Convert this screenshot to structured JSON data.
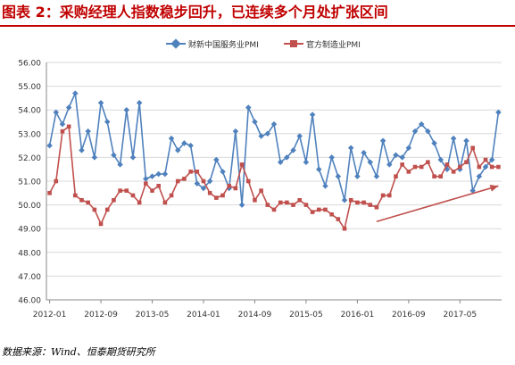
{
  "title": "图表 2：采购经理人指数稳步回升，已连续多个月处扩张区间",
  "source": "数据来源：Wind、恒泰期货研究所",
  "colors": {
    "title": "#c00000",
    "services": "#4f81bd",
    "manufacturing": "#c0504d",
    "arrow": "#c0504d"
  },
  "chart_data": {
    "type": "line",
    "legend_position": "top",
    "grid": "horizontal",
    "ylim": [
      46,
      56
    ],
    "yticks": [
      "46.00",
      "47.00",
      "48.00",
      "49.00",
      "50.00",
      "51.00",
      "52.00",
      "53.00",
      "54.00",
      "55.00",
      "56.00"
    ],
    "xtick_labels": [
      "2012-01",
      "2012-09",
      "2013-05",
      "2014-01",
      "2014-09",
      "2015-05",
      "2016-01",
      "2016-09",
      "2017-05"
    ],
    "xtick_index": [
      0,
      8,
      16,
      24,
      32,
      40,
      48,
      56,
      64
    ],
    "n_points": 71,
    "series": [
      {
        "name": "财新中国服务业PMI",
        "marker": "diamond",
        "values": [
          52.5,
          53.9,
          53.4,
          54.1,
          54.7,
          52.3,
          53.1,
          52.0,
          54.3,
          53.5,
          52.1,
          51.7,
          54.0,
          52.0,
          54.3,
          51.1,
          51.2,
          51.3,
          51.3,
          52.8,
          52.3,
          52.6,
          52.5,
          50.9,
          50.7,
          51.0,
          51.9,
          51.4,
          50.7,
          53.1,
          50.0,
          54.1,
          53.5,
          52.9,
          53.0,
          53.4,
          51.8,
          52.0,
          52.3,
          52.9,
          51.8,
          53.8,
          51.5,
          50.8,
          52.0,
          51.2,
          50.2,
          52.4,
          51.2,
          52.2,
          51.8,
          51.2,
          52.7,
          51.7,
          52.1,
          52.0,
          52.4,
          53.1,
          53.4,
          53.1,
          52.6,
          51.9,
          51.5,
          52.8,
          51.5,
          52.7,
          50.6,
          51.2,
          51.6,
          51.9,
          53.9
        ]
      },
      {
        "name": "官方制造业PMI",
        "marker": "square",
        "values": [
          50.5,
          51.0,
          53.1,
          53.3,
          50.4,
          50.2,
          50.1,
          49.8,
          49.2,
          49.8,
          50.2,
          50.6,
          50.6,
          50.4,
          50.1,
          50.9,
          50.6,
          50.8,
          50.1,
          50.4,
          51.0,
          51.1,
          51.4,
          51.4,
          51.0,
          50.5,
          50.3,
          50.4,
          50.8,
          50.7,
          51.7,
          51.0,
          50.2,
          50.6,
          50.0,
          49.8,
          50.1,
          50.1,
          50.0,
          50.2,
          50.0,
          49.7,
          49.8,
          49.8,
          49.6,
          49.4,
          49.0,
          50.2,
          50.1,
          50.1,
          50.0,
          49.9,
          50.4,
          50.4,
          51.2,
          51.7,
          51.4,
          51.6,
          51.6,
          51.8,
          51.2,
          51.2,
          51.7,
          51.4,
          51.6,
          51.8,
          52.4,
          51.6,
          51.9,
          51.6,
          51.6
        ]
      }
    ],
    "annotation": {
      "type": "arrow",
      "from": [
        51,
        49.3
      ],
      "to": [
        70,
        50.8
      ]
    }
  }
}
